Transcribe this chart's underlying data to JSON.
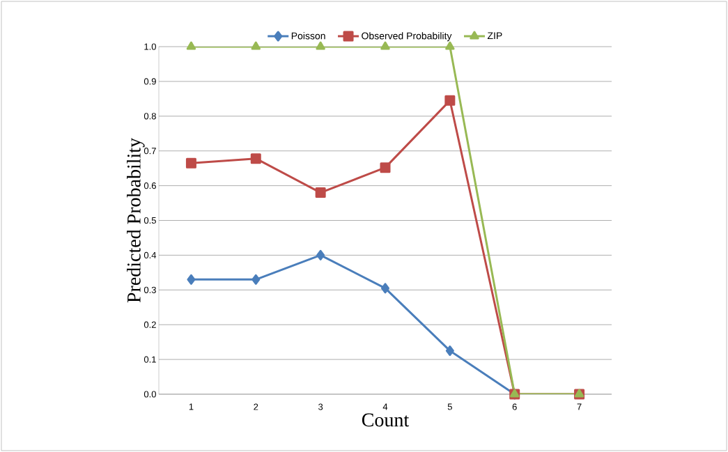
{
  "chart_data": {
    "type": "line",
    "xlabel": "Count",
    "ylabel": "Predicted Probability",
    "categories": [
      "1",
      "2",
      "3",
      "4",
      "5",
      "6",
      "7"
    ],
    "series": [
      {
        "name": "Poisson",
        "color": "#4a7ebb",
        "marker": "diamond",
        "values": [
          0.33,
          0.33,
          0.4,
          0.305,
          0.125,
          0,
          null
        ]
      },
      {
        "name": "Observed Probability",
        "color": "#be4b48",
        "marker": "square",
        "values": [
          0.665,
          0.678,
          0.58,
          0.652,
          0.845,
          0,
          0
        ]
      },
      {
        "name": "ZIP",
        "color": "#98b954",
        "marker": "triangle",
        "values": [
          1,
          1,
          1,
          1,
          1,
          0,
          0
        ]
      }
    ],
    "ylim": [
      0,
      1
    ],
    "yticks": [
      {
        "value": 0,
        "label": "0.0"
      },
      {
        "value": 0.1,
        "label": "0.1"
      },
      {
        "value": 0.2,
        "label": "0.2"
      },
      {
        "value": 0.3,
        "label": "0.3"
      },
      {
        "value": 0.4,
        "label": "0.4"
      },
      {
        "value": 0.5,
        "label": "0.5"
      },
      {
        "value": 0.6,
        "label": "0.6"
      },
      {
        "value": 0.7,
        "label": "0.7"
      },
      {
        "value": 0.8,
        "label": "0.8"
      },
      {
        "value": 0.9,
        "label": "0.9"
      },
      {
        "value": 1,
        "label": "1.0"
      }
    ],
    "grid": "y",
    "legend": "top",
    "line_style": "solid"
  }
}
